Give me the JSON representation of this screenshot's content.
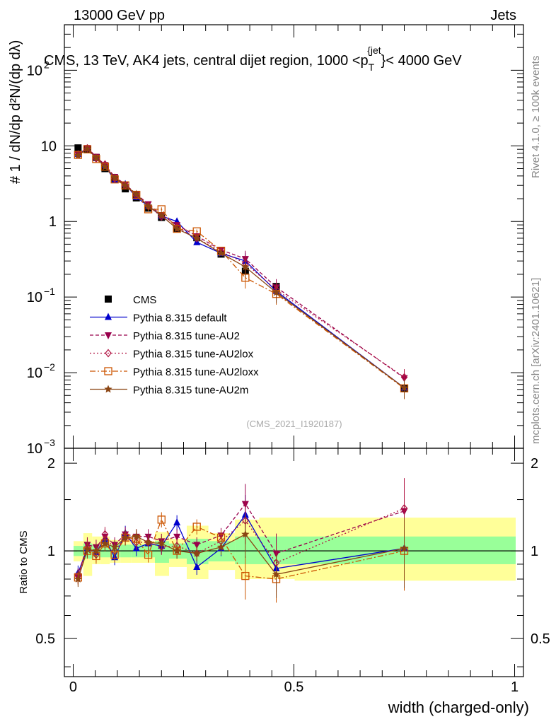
{
  "header": {
    "left": "13000 GeV pp",
    "right": "Jets",
    "title": "CMS, 13 TeV, AK4 jets, central dijet region, 1000 <p",
    "title_sub": "T",
    "title_sup": "{jet",
    "title_end": "}< 4000 GeV",
    "side_top": "Rivet 4.1.0, ≥ 100k events",
    "side_bottom": "mcplots.cern.ch [arXiv:2401.10621]",
    "analysis_id": "(CMS_2021_I1920187)"
  },
  "colors": {
    "CMS": "#000000",
    "default": "#0000cc",
    "AU2": "#99004c",
    "AU2lox": "#b01040",
    "AU2loxx": "#cc5500",
    "AU2m": "#8b4513",
    "band_yellow": "#ffff99",
    "band_green": "#99ff99"
  },
  "chart_data": [
    {
      "type": "scatter",
      "yscale": "log",
      "xlim": [
        -0.02,
        1.02
      ],
      "ylim": [
        0.001,
        400
      ],
      "ylabel": "# 1/(dN/dp_T) d²N/(dp_T dλ)",
      "yticks": [
        {
          "value": 0.001,
          "label": "10",
          "sup": "−3"
        },
        {
          "value": 0.01,
          "label": "10",
          "sup": "−2"
        },
        {
          "value": 0.1,
          "label": "10",
          "sup": "−1"
        },
        {
          "value": 1,
          "label": "1",
          "sup": ""
        },
        {
          "value": 10,
          "label": "10",
          "sup": ""
        },
        {
          "value": 100,
          "label": "10",
          "sup": "2"
        }
      ],
      "x": [
        0.011,
        0.032,
        0.052,
        0.072,
        0.094,
        0.118,
        0.143,
        0.17,
        0.2,
        0.235,
        0.28,
        0.335,
        0.39,
        0.46,
        0.75
      ],
      "series": [
        {
          "name": "CMS",
          "key": "CMS",
          "marker": "square-filled",
          "values": [
            9.4,
            9.0,
            7.0,
            5.0,
            3.7,
            2.7,
            2.05,
            1.5,
            1.13,
            0.8,
            0.61,
            0.37,
            0.22,
            0.138,
            0.0062
          ]
        },
        {
          "name": "Pythia 8.315 default",
          "key": "default",
          "marker": "triangle-up",
          "values": [
            7.8,
            9.2,
            6.9,
            5.5,
            3.5,
            3.1,
            2.1,
            1.6,
            1.18,
            1.0,
            0.53,
            0.38,
            0.3,
            0.12,
            0.0063
          ]
        },
        {
          "name": "Pythia 8.315 tune-AU2",
          "key": "AU2",
          "marker": "triangle-down",
          "values": [
            7.7,
            9.4,
            7.2,
            5.6,
            3.9,
            3.1,
            2.3,
            1.7,
            1.22,
            0.9,
            0.64,
            0.42,
            0.32,
            0.135,
            0.0085
          ]
        },
        {
          "name": "Pythia 8.315 tune-AU2lox",
          "key": "AU2lox",
          "marker": "diamond-open",
          "values": [
            7.7,
            9.3,
            6.8,
            5.7,
            3.7,
            3.0,
            2.2,
            1.6,
            1.16,
            0.83,
            0.6,
            0.4,
            0.28,
            0.125,
            0.0087
          ]
        },
        {
          "name": "Pythia 8.315 tune-AU2loxx",
          "key": "AU2loxx",
          "marker": "square-open",
          "values": [
            7.6,
            9.0,
            6.7,
            5.3,
            3.6,
            3.0,
            2.25,
            1.45,
            1.45,
            0.8,
            0.74,
            0.41,
            0.18,
            0.11,
            0.0062
          ]
        },
        {
          "name": "Pythia 8.315 tune-AU2m",
          "key": "AU2m",
          "marker": "star",
          "values": [
            7.5,
            9.1,
            7.0,
            5.3,
            3.8,
            3.0,
            2.3,
            1.6,
            1.2,
            0.8,
            0.6,
            0.38,
            0.25,
            0.115,
            0.0063
          ]
        }
      ],
      "legend": "bottom-left"
    },
    {
      "type": "scatter",
      "ylim": [
        0.37,
        2.25
      ],
      "ylabel": "Ratio to CMS",
      "xlabel": "width (charged-only)",
      "yticks": [
        0.5,
        1,
        2
      ],
      "xticks": [
        0,
        0.5,
        1
      ],
      "bands": {
        "edges": [
          0.0,
          0.022,
          0.042,
          0.062,
          0.082,
          0.106,
          0.13,
          0.156,
          0.184,
          0.216,
          0.256,
          0.305,
          0.365,
          0.42,
          0.5,
          1.0
        ],
        "yellow": [
          [
            0.92,
            1.08
          ],
          [
            0.82,
            1.15
          ],
          [
            0.9,
            1.12
          ],
          [
            0.9,
            1.12
          ],
          [
            0.91,
            1.09
          ],
          [
            0.91,
            1.09
          ],
          [
            0.91,
            1.09
          ],
          [
            0.91,
            1.08
          ],
          [
            0.82,
            1.16
          ],
          [
            0.88,
            1.1
          ],
          [
            0.8,
            1.22
          ],
          [
            0.86,
            1.15
          ],
          [
            0.8,
            1.28
          ],
          [
            0.8,
            1.3
          ],
          [
            0.79,
            1.3
          ]
        ],
        "green": [
          [
            0.96,
            1.04
          ],
          [
            0.94,
            1.06
          ],
          [
            0.95,
            1.05
          ],
          [
            0.95,
            1.05
          ],
          [
            0.95,
            1.05
          ],
          [
            0.95,
            1.05
          ],
          [
            0.95,
            1.05
          ],
          [
            0.95,
            1.05
          ],
          [
            0.91,
            1.08
          ],
          [
            0.94,
            1.06
          ],
          [
            0.9,
            1.1
          ],
          [
            0.92,
            1.08
          ],
          [
            0.9,
            1.12
          ],
          [
            0.9,
            1.12
          ],
          [
            0.9,
            1.12
          ]
        ]
      },
      "series": [
        {
          "name": "Pythia 8.315 default",
          "key": "default",
          "values": [
            0.84,
            1.02,
            0.99,
            1.1,
            0.95,
            1.15,
            1.02,
            1.06,
            1.04,
            1.25,
            0.88,
            1.02,
            1.33,
            0.87,
            1.02
          ]
        },
        {
          "name": "Pythia 8.315 tune-AU2",
          "key": "AU2",
          "values": [
            0.82,
            1.05,
            1.03,
            1.12,
            1.05,
            1.14,
            1.12,
            1.12,
            1.08,
            1.12,
            1.05,
            1.13,
            1.45,
            0.98,
            1.37
          ]
        },
        {
          "name": "Pythia 8.315 tune-AU2lox",
          "key": "AU2lox",
          "values": [
            0.82,
            1.03,
            0.97,
            1.14,
            1.0,
            1.11,
            1.07,
            1.07,
            1.03,
            1.04,
            0.98,
            1.08,
            1.27,
            0.91,
            1.4
          ]
        },
        {
          "name": "Pythia 8.315 tune-AU2loxx",
          "key": "AU2loxx",
          "values": [
            0.81,
            1.0,
            0.96,
            1.06,
            0.97,
            1.11,
            1.1,
            0.97,
            1.28,
            1.0,
            1.21,
            1.11,
            0.82,
            0.8,
            1.0
          ]
        },
        {
          "name": "Pythia 8.315 tune-AU2m",
          "key": "AU2m",
          "values": [
            0.8,
            1.01,
            1.0,
            1.06,
            1.03,
            1.11,
            1.12,
            1.07,
            1.06,
            1.0,
            0.98,
            1.03,
            1.14,
            0.83,
            1.02
          ]
        }
      ]
    }
  ]
}
